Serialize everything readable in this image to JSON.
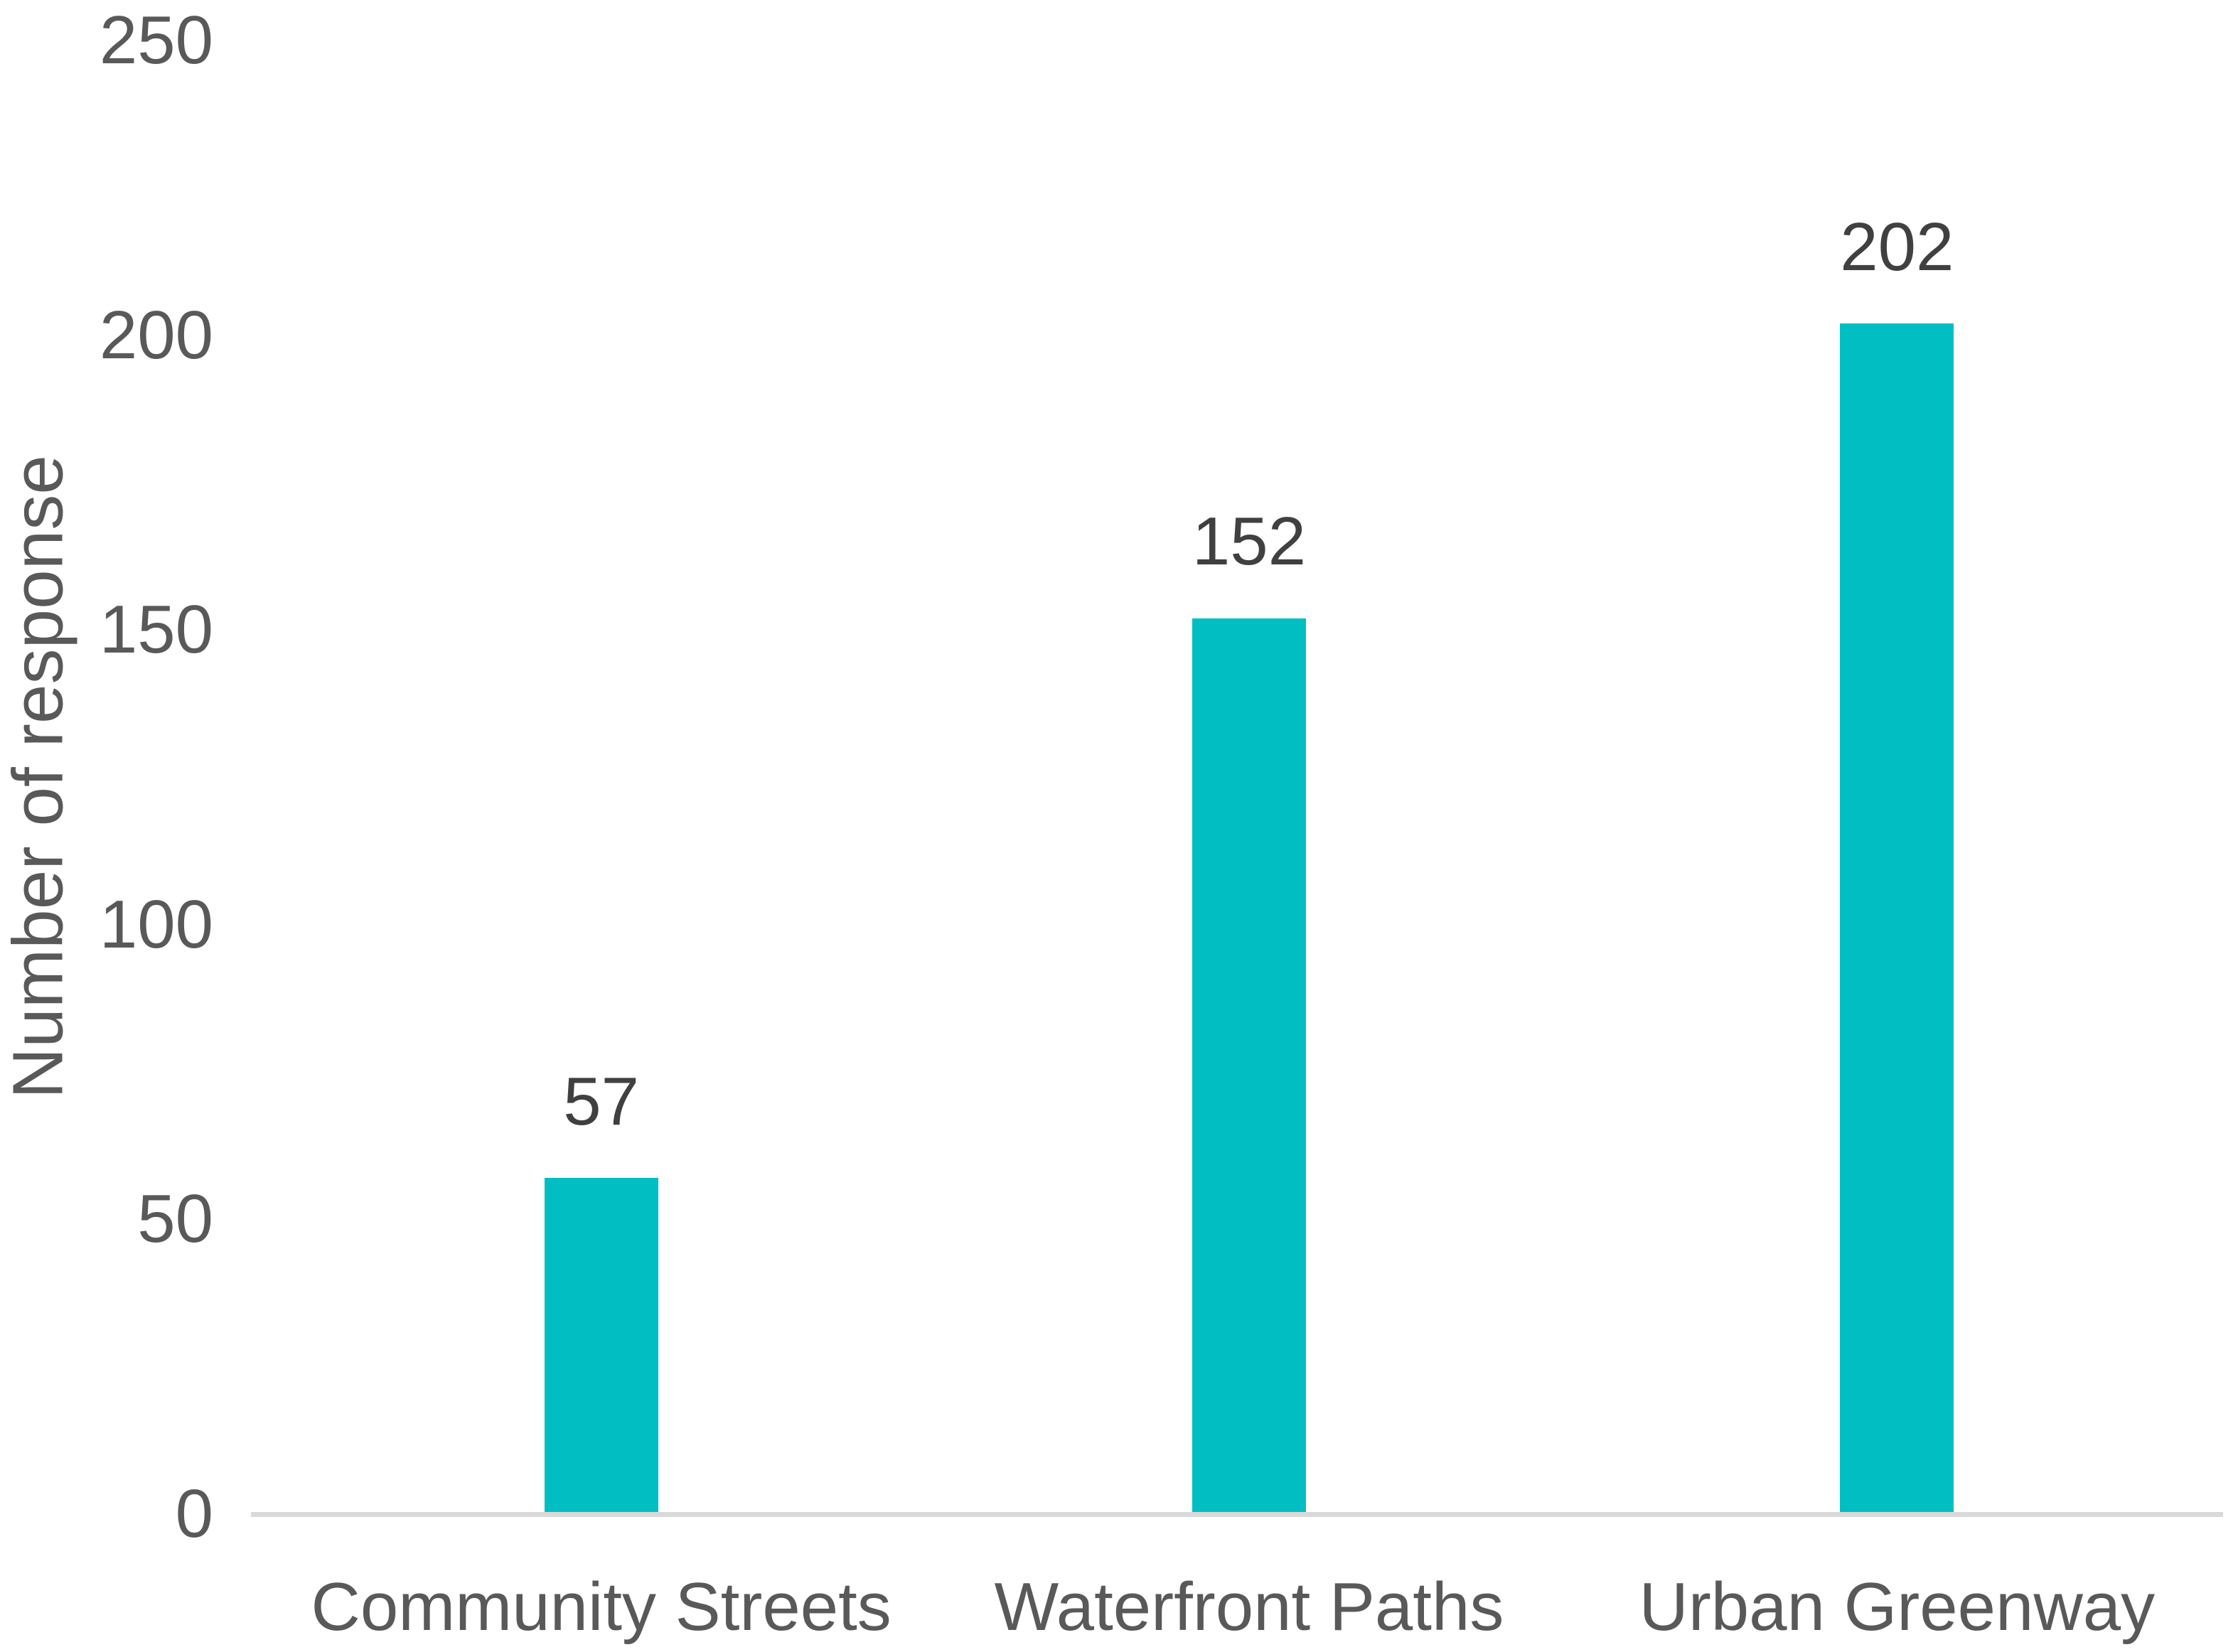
{
  "chart_data": {
    "type": "bar",
    "title": "",
    "xlabel": "",
    "ylabel": "Number of response",
    "categories": [
      "Community Streets",
      "Waterfront Paths",
      "Urban Greenway"
    ],
    "values": [
      57,
      152,
      202
    ],
    "data_labels": [
      "57",
      "152",
      "202"
    ],
    "yticks": [
      250,
      200,
      150,
      100,
      50,
      0
    ],
    "ylim": [
      0,
      250
    ],
    "grid": false,
    "legend": "none",
    "colors": {
      "bar": "#00BEC2",
      "axis_line": "#D9D9D9",
      "tick_text": "#595959",
      "data_label_text": "#404040"
    }
  }
}
